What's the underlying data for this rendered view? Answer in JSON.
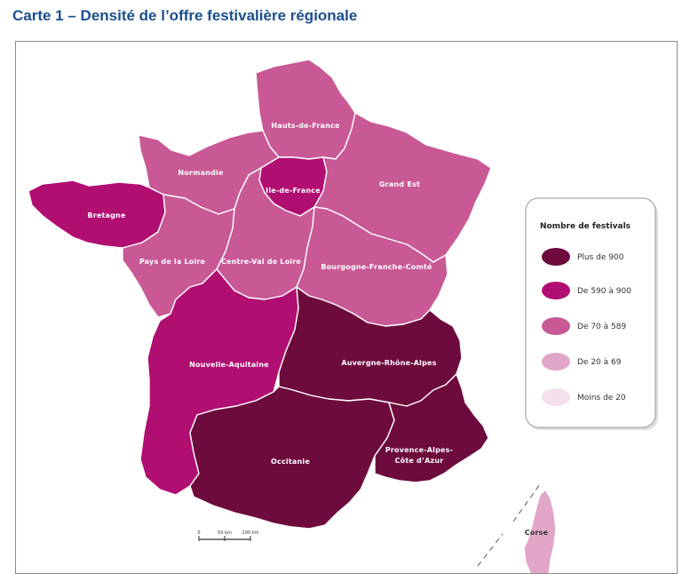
{
  "title": "Carte 1 – Densité de l’offre festivalière régionale",
  "colors": {
    "plus_900": "#6e0b3d",
    "d590_900": "#b10e72",
    "d70_589": "#c85995",
    "d20_69": "#e2a6c8",
    "moins_20": "#f4e0ec"
  },
  "regions": {
    "hdf": {
      "label": "Hauts-de-France",
      "class": "d70_589"
    },
    "normandie": {
      "label": "Normandie",
      "class": "d70_589"
    },
    "idf": {
      "label": "Ile-de-France",
      "class": "d590_900"
    },
    "grandest": {
      "label": "Grand Est",
      "class": "d70_589"
    },
    "bretagne": {
      "label": "Bretagne",
      "class": "d590_900"
    },
    "pdl": {
      "label": "Pays de la Loire",
      "class": "d70_589"
    },
    "cvl": {
      "label": "Centre-Val de Loire",
      "class": "d70_589"
    },
    "bfc": {
      "label": "Bourgogne-Franche-Comté",
      "class": "d70_589"
    },
    "na": {
      "label": "Nouvelle-Aquitaine",
      "class": "d590_900"
    },
    "ara": {
      "label": "Auvergne-Rhône-Alpes",
      "class": "plus_900"
    },
    "occ": {
      "label": "Occitanie",
      "class": "plus_900"
    },
    "paca1": {
      "label": "Provence-Alpes-",
      "class": "plus_900"
    },
    "paca2": {
      "label": "Côte d’Azur"
    },
    "corse": {
      "label": "Corse",
      "class": "d20_69"
    }
  },
  "legend": {
    "title": "Nombre de festivals",
    "items": [
      {
        "label": "Plus de 900",
        "color": "#6e0b3d"
      },
      {
        "label": "De 590 à 900",
        "color": "#b10e72"
      },
      {
        "label": "De 70 à 589",
        "color": "#c85995"
      },
      {
        "label": "De 20 à 69",
        "color": "#e2a6c8"
      },
      {
        "label": "Moins de 20",
        "color": "#f4e0ec"
      }
    ]
  },
  "scale": {
    "labels": [
      "0",
      "50 km",
      "100 km"
    ]
  }
}
